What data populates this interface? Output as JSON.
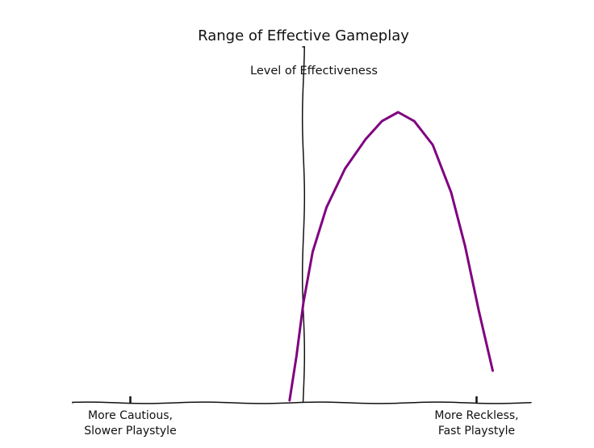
{
  "chart_data": {
    "type": "line",
    "title": "Range of Effective Gameplay",
    "ylabel": "Level of Effectiveness",
    "xlabel": "",
    "xlim": [
      -1,
      1
    ],
    "ylim": [
      0,
      1
    ],
    "grid": false,
    "x_ticks": [
      {
        "x": -0.75,
        "label_lines": [
          "More Cautious,",
          "Slower Playstyle"
        ]
      },
      {
        "x": 0.75,
        "label_lines": [
          "More Reckless,",
          "Fast Playstyle"
        ]
      }
    ],
    "series": [
      {
        "color": "#800080",
        "x": [
          -0.06,
          -0.03,
          0.0,
          0.04,
          0.1,
          0.18,
          0.27,
          0.34,
          0.41,
          0.48,
          0.56,
          0.64,
          0.7,
          0.76,
          0.82
        ],
        "y": [
          0.0,
          0.15,
          0.33,
          0.5,
          0.65,
          0.78,
          0.88,
          0.94,
          0.97,
          0.94,
          0.86,
          0.7,
          0.52,
          0.3,
          0.1
        ]
      }
    ]
  }
}
